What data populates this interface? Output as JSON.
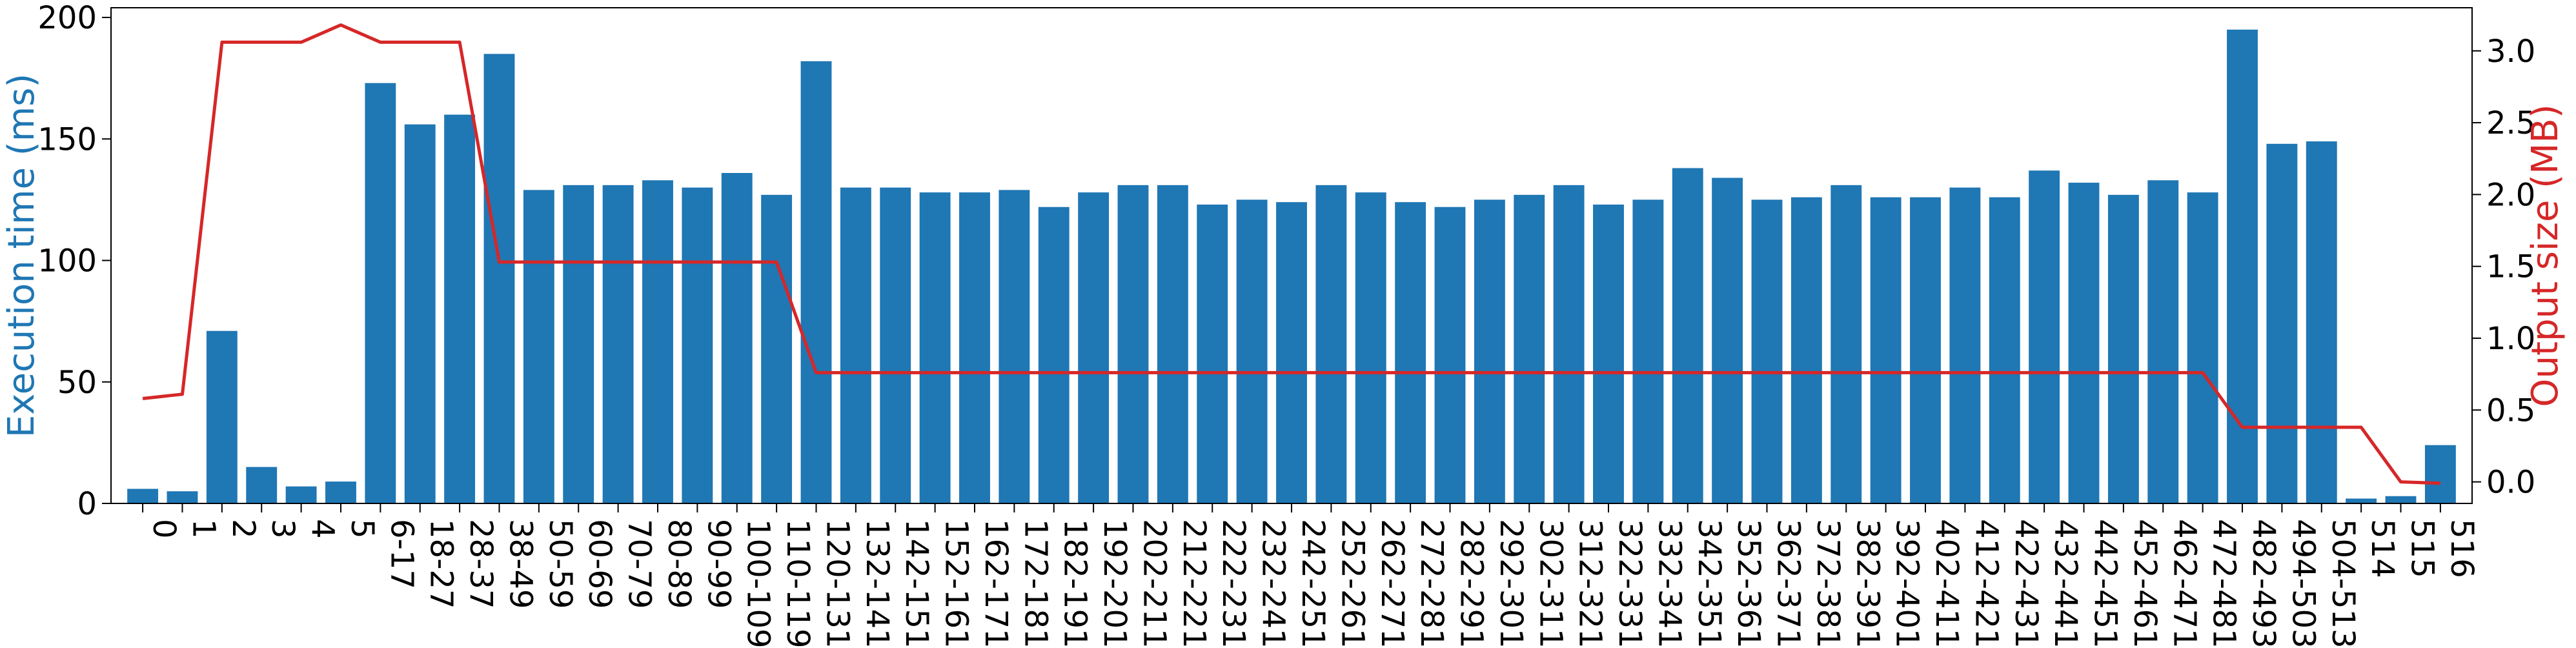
{
  "colors": {
    "bar": "#1f77b4",
    "line": "#d62728",
    "left_axis_label": "#1f77b4",
    "right_axis_label": "#d62728"
  },
  "chart_data": {
    "type": "bar",
    "title": "",
    "xlabel": "",
    "ylabel": "Execution time (ms)",
    "y2label": "Output size (MB)",
    "ylim": [
      0,
      204
    ],
    "y2lim": [
      -0.15,
      3.3
    ],
    "yticks": [
      0,
      50,
      100,
      150,
      200
    ],
    "y2ticks": [
      0.0,
      0.5,
      1.0,
      1.5,
      2.0,
      2.5,
      3.0
    ],
    "y2ticks_text": [
      "0.0",
      "0.5",
      "1.0",
      "1.5",
      "2.0",
      "2.5",
      "3.0"
    ],
    "grid": false,
    "categories": [
      "0",
      "1",
      "2",
      "3",
      "4",
      "5",
      "6-17",
      "18-27",
      "28-37",
      "38-49",
      "50-59",
      "60-69",
      "70-79",
      "80-89",
      "90-99",
      "100-109",
      "110-119",
      "120-131",
      "132-141",
      "142-151",
      "152-161",
      "162-171",
      "172-181",
      "182-191",
      "192-201",
      "202-211",
      "212-221",
      "222-231",
      "232-241",
      "242-251",
      "252-261",
      "262-271",
      "272-281",
      "282-291",
      "292-301",
      "302-311",
      "312-321",
      "322-331",
      "332-341",
      "342-351",
      "352-361",
      "362-371",
      "372-381",
      "382-391",
      "392-401",
      "402-411",
      "412-421",
      "422-431",
      "432-441",
      "442-451",
      "452-461",
      "462-471",
      "472-481",
      "482-493",
      "494-503",
      "504-513",
      "514",
      "515",
      "516"
    ],
    "series": [
      {
        "axis": "left",
        "kind": "bar",
        "values": [
          6,
          5,
          71,
          15,
          7,
          9,
          173,
          156,
          160,
          185,
          129,
          131,
          131,
          133,
          130,
          136,
          127,
          182,
          130,
          130,
          128,
          128,
          129,
          122,
          128,
          131,
          131,
          123,
          125,
          124,
          131,
          128,
          124,
          122,
          125,
          127,
          131,
          123,
          125,
          138,
          134,
          125,
          126,
          131,
          126,
          126,
          130,
          126,
          137,
          132,
          127,
          133,
          128,
          195,
          148,
          149,
          2,
          3,
          24
        ]
      },
      {
        "axis": "right",
        "kind": "line",
        "values": [
          0.58,
          0.61,
          3.06,
          3.06,
          3.06,
          3.18,
          3.06,
          3.06,
          3.06,
          1.53,
          1.53,
          1.53,
          1.53,
          1.53,
          1.53,
          1.53,
          1.53,
          0.76,
          0.76,
          0.76,
          0.76,
          0.76,
          0.76,
          0.76,
          0.76,
          0.76,
          0.76,
          0.76,
          0.76,
          0.76,
          0.76,
          0.76,
          0.76,
          0.76,
          0.76,
          0.76,
          0.76,
          0.76,
          0.76,
          0.76,
          0.76,
          0.76,
          0.76,
          0.76,
          0.76,
          0.76,
          0.76,
          0.76,
          0.76,
          0.76,
          0.76,
          0.76,
          0.76,
          0.38,
          0.38,
          0.38,
          0.38,
          0.0,
          -0.01
        ]
      }
    ]
  }
}
